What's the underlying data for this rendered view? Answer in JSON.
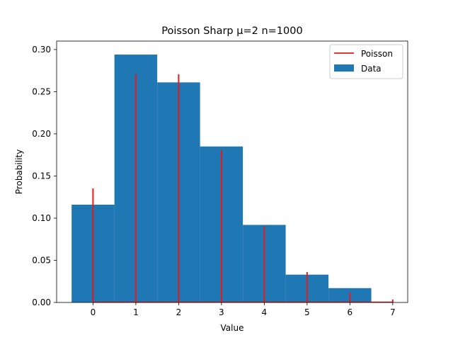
{
  "chart_data": {
    "type": "bar",
    "title": "Poisson Sharp   μ=2   n=1000",
    "xlabel": "Value",
    "ylabel": "Probability",
    "xlim": [
      -0.85,
      7.35
    ],
    "ylim": [
      0,
      0.31
    ],
    "xticks": [
      "0",
      "1",
      "2",
      "3",
      "4",
      "5",
      "6",
      "7"
    ],
    "yticks": [
      "0.00",
      "0.05",
      "0.10",
      "0.15",
      "0.20",
      "0.25",
      "0.30"
    ],
    "grid": false,
    "legend_position": "top-right",
    "bar_width": 1,
    "series": [
      {
        "name": "Data",
        "kind": "bar",
        "color": "#1f77b4",
        "x": [
          0,
          1,
          2,
          3,
          4,
          5,
          6
        ],
        "values": [
          0.116,
          0.294,
          0.261,
          0.185,
          0.092,
          0.033,
          0.017
        ]
      },
      {
        "name": "Poisson",
        "kind": "vlines",
        "color": "#e41a1c",
        "x": [
          0,
          1,
          2,
          3,
          4,
          5,
          6,
          7
        ],
        "values": [
          0.1353,
          0.2707,
          0.2707,
          0.1804,
          0.0902,
          0.0361,
          0.012,
          0.0034
        ]
      }
    ]
  }
}
